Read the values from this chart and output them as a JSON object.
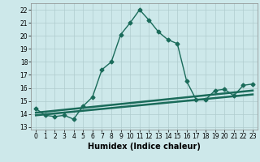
{
  "line1_x": [
    0,
    1,
    2,
    3,
    4,
    5,
    6,
    7,
    8,
    9,
    10,
    11,
    12,
    13,
    14,
    15,
    16,
    17,
    18,
    19,
    20,
    21,
    22,
    23
  ],
  "line1_y": [
    14.4,
    13.9,
    13.8,
    13.9,
    13.6,
    14.6,
    15.3,
    17.4,
    18.0,
    20.1,
    21.0,
    22.0,
    21.2,
    20.3,
    19.7,
    19.4,
    16.5,
    15.1,
    15.1,
    15.8,
    15.9,
    15.4,
    16.2,
    16.3
  ],
  "line2_x": [
    0,
    23
  ],
  "line2_y": [
    14.1,
    15.8
  ],
  "line3_x": [
    0,
    23
  ],
  "line3_y": [
    13.9,
    15.5
  ],
  "color": "#1a6b5a",
  "bg_color": "#cde8ea",
  "grid_color": "#b0ccce",
  "xlabel": "Humidex (Indice chaleur)",
  "xlabel_fontsize": 7,
  "yticks": [
    13,
    14,
    15,
    16,
    17,
    18,
    19,
    20,
    21,
    22
  ],
  "xticks": [
    0,
    1,
    2,
    3,
    4,
    5,
    6,
    7,
    8,
    9,
    10,
    11,
    12,
    13,
    14,
    15,
    16,
    17,
    18,
    19,
    20,
    21,
    22,
    23
  ],
  "ylim": [
    12.8,
    22.5
  ],
  "xlim": [
    -0.5,
    23.5
  ],
  "markersize": 2.5,
  "linewidth": 1.0,
  "tick_fontsize": 5.5
}
